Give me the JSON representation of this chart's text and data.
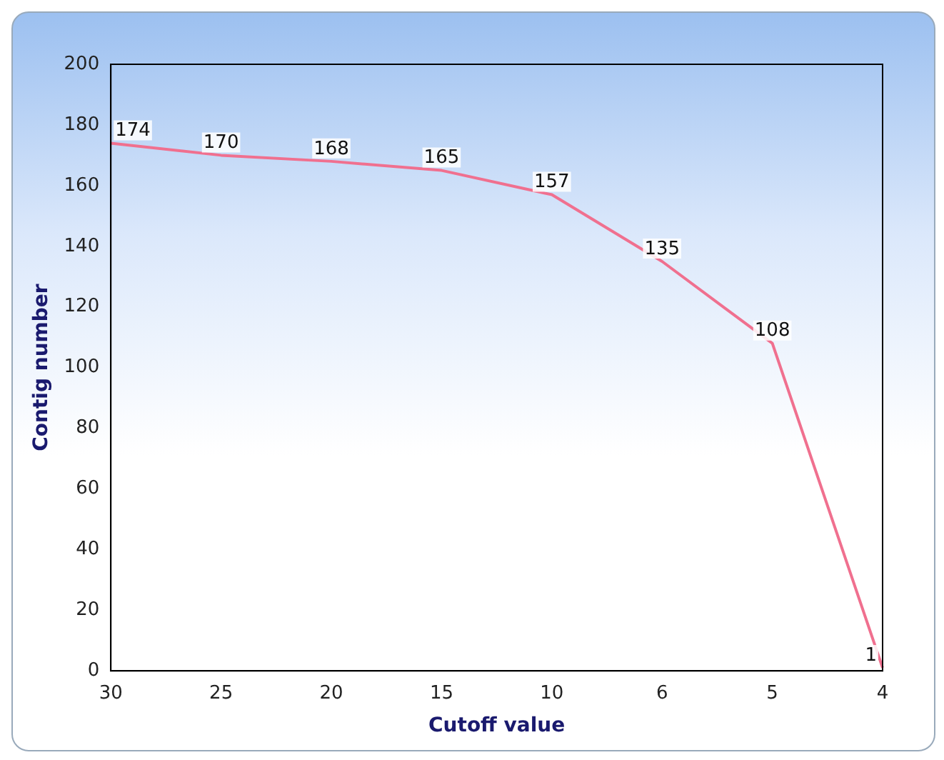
{
  "chart_data": {
    "type": "line",
    "xlabel": "Cutoff value",
    "ylabel": "Contig number",
    "categories": [
      "30",
      "25",
      "20",
      "15",
      "10",
      "6",
      "5",
      "4"
    ],
    "series": [
      {
        "color": "#f0708f",
        "values": [
          174,
          170,
          168,
          165,
          157,
          135,
          108,
          1
        ]
      }
    ],
    "ylim": [
      0,
      200
    ],
    "yticks": [
      0,
      20,
      40,
      60,
      80,
      100,
      120,
      140,
      160,
      180,
      200
    ],
    "grid": false,
    "legend": false,
    "marker": "none",
    "line_style": "solid",
    "data_labels": true
  }
}
